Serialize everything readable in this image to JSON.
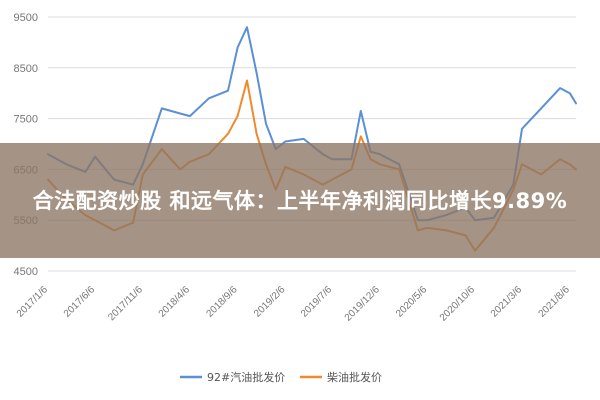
{
  "overlay": {
    "title": "合法配资炒股 和远气体：上半年净利润同比增长9.89%"
  },
  "colors": {
    "series_blue": "#5b8fd6",
    "series_orange": "#ef8a2e",
    "overlay_bg": "#8c7664"
  },
  "chart_data": {
    "type": "line",
    "yticks": [
      4500,
      5500,
      6500,
      7500,
      8500,
      9500
    ],
    "ylim": [
      4500,
      9500
    ],
    "xticks": [
      "2017/1/6",
      "2017/6/6",
      "2017/11/6",
      "2018/4/6",
      "2018/9/6",
      "2019/2/6",
      "2019/7/6",
      "2019/12/6",
      "2020/5/6",
      "2020/10/6",
      "2021/3/6",
      "2021/8/6"
    ],
    "grid": true,
    "legend_position": "bottom",
    "x": [
      "2017/1/6",
      "2017/3/6",
      "2017/5/6",
      "2017/6/6",
      "2017/8/6",
      "2017/10/6",
      "2017/11/6",
      "2018/1/6",
      "2018/3/6",
      "2018/4/6",
      "2018/6/6",
      "2018/8/6",
      "2018/9/6",
      "2018/10/6",
      "2018/11/6",
      "2018/12/6",
      "2019/1/6",
      "2019/2/6",
      "2019/4/6",
      "2019/6/6",
      "2019/7/6",
      "2019/9/6",
      "2019/10/6",
      "2019/11/6",
      "2019/12/6",
      "2020/2/6",
      "2020/4/6",
      "2020/5/6",
      "2020/7/6",
      "2020/9/6",
      "2020/10/6",
      "2020/12/6",
      "2021/2/6",
      "2021/3/6",
      "2021/5/6",
      "2021/7/6",
      "2021/8/6",
      "2021/8/26"
    ],
    "series": [
      {
        "name": "92#汽油批发价",
        "color": "#5b8fd6",
        "values": [
          6800,
          6600,
          6450,
          6750,
          6300,
          6200,
          6600,
          7700,
          7600,
          7550,
          7900,
          8050,
          8900,
          9300,
          8400,
          7400,
          6900,
          7050,
          7100,
          6800,
          6700,
          6700,
          7650,
          6850,
          6800,
          6600,
          5500,
          5500,
          5600,
          5750,
          5500,
          5550,
          6200,
          7300,
          7700,
          8100,
          8000,
          7800
        ]
      },
      {
        "name": "柴油批发价",
        "color": "#ef8a2e",
        "values": [
          6300,
          5900,
          5600,
          5500,
          5300,
          5450,
          6400,
          6900,
          6500,
          6650,
          6800,
          7200,
          7550,
          8250,
          7200,
          6600,
          6100,
          6550,
          6400,
          6200,
          6300,
          6500,
          7150,
          6700,
          6600,
          6500,
          5300,
          5350,
          5300,
          5200,
          4900,
          5350,
          6100,
          6600,
          6400,
          6700,
          6600,
          6500
        ]
      }
    ]
  }
}
